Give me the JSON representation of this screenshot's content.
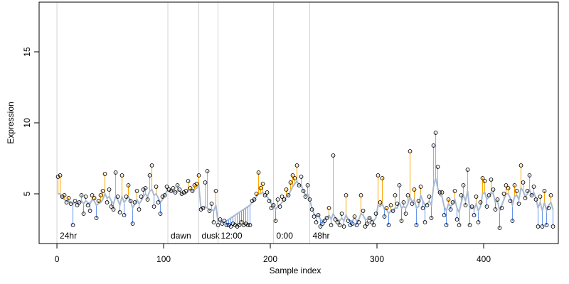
{
  "chart_data": {
    "type": "scatter",
    "xlabel": "Sample index",
    "ylabel": "Expression",
    "xlim": [
      -16.7,
      470
    ],
    "ylim": [
      1.5,
      18.5
    ],
    "xticks": [
      0,
      100,
      200,
      300,
      400
    ],
    "yticks": [
      5,
      10,
      15
    ],
    "colors": {
      "above": "#ffa500",
      "below": "#6495ed",
      "fit": "#a9b9d0",
      "points": "#000000",
      "divider": "#d3d3d3",
      "annotation": "#a9a9a9"
    },
    "annotations": [
      {
        "x": 0,
        "label": "24hr"
      },
      {
        "x": 104,
        "label": "dawn"
      },
      {
        "x": 133,
        "label": "dusk"
      },
      {
        "x": 151,
        "label": "12:00"
      },
      {
        "x": 203,
        "label": "0:00"
      },
      {
        "x": 237,
        "label": "48hr"
      }
    ],
    "x": [
      1,
      3,
      5,
      7,
      9,
      11,
      13,
      15,
      17,
      19,
      21,
      23,
      25,
      27,
      29,
      31,
      33,
      35,
      37,
      39,
      41,
      43,
      45,
      47,
      49,
      51,
      53,
      55,
      57,
      59,
      61,
      63,
      65,
      67,
      69,
      71,
      73,
      75,
      77,
      79,
      81,
      83,
      85,
      87,
      89,
      91,
      93,
      95,
      97,
      99,
      101,
      103,
      105,
      107,
      109,
      111,
      113,
      115,
      117,
      119,
      121,
      123,
      125,
      127,
      129,
      131,
      133,
      135,
      137,
      139,
      141,
      143,
      145,
      147,
      149,
      151,
      153,
      155,
      157,
      159,
      161,
      163,
      165,
      167,
      169,
      171,
      173,
      175,
      177,
      179,
      181,
      183,
      185,
      187,
      189,
      191,
      193,
      195,
      197,
      199,
      201,
      203,
      205,
      207,
      209,
      211,
      213,
      215,
      217,
      219,
      221,
      223,
      225,
      227,
      229,
      231,
      233,
      235,
      237,
      239,
      241,
      243,
      245,
      247,
      249,
      251,
      253,
      255,
      257,
      259,
      261,
      263,
      265,
      267,
      269,
      271,
      273,
      275,
      277,
      279,
      281,
      283,
      285,
      287,
      289,
      291,
      293,
      295,
      297,
      299,
      301,
      303,
      305,
      307,
      309,
      311,
      313,
      315,
      317,
      319,
      321,
      323,
      325,
      327,
      329,
      331,
      333,
      335,
      337,
      339,
      341,
      343,
      345,
      347,
      349,
      351,
      353,
      355,
      357,
      359,
      361,
      363,
      365,
      367,
      369,
      371,
      373,
      375,
      377,
      379,
      381,
      383,
      385,
      387,
      389,
      391,
      393,
      395,
      397,
      399,
      401,
      403,
      405,
      407,
      409,
      411,
      413,
      415,
      417,
      419,
      421,
      423,
      425,
      427,
      429,
      431,
      433,
      435,
      437,
      439,
      441,
      443,
      445,
      447,
      449,
      451,
      453,
      455,
      457,
      459,
      461,
      463,
      465
    ],
    "values": [
      6.2,
      6.3,
      4.8,
      4.9,
      4.4,
      4.7,
      4.3,
      2.8,
      4.5,
      4.2,
      4.4,
      4.9,
      3.6,
      4.8,
      4.2,
      3.8,
      4.9,
      4.7,
      3.3,
      4.5,
      4.9,
      5.2,
      6.4,
      4.4,
      5.3,
      4.1,
      3.9,
      6.5,
      4.8,
      3.7,
      6.3,
      3.5,
      4.8,
      5.6,
      4.5,
      2.9,
      4.4,
      5.2,
      3.9,
      4.8,
      5.3,
      5.4,
      4.6,
      6.3,
      7.0,
      4.1,
      5.5,
      4.4,
      3.6,
      4.8,
      4.9,
      5.5,
      5.3,
      5.2,
      5.4,
      5.1,
      5.6,
      5.3,
      5.0,
      5.1,
      5.2,
      5.9,
      5.4,
      5.2,
      5.6,
      5.7,
      6.3,
      3.9,
      4.0,
      5.8,
      6.6,
      3.8,
      4.3,
      3.0,
      5.2,
      2.8,
      3.2,
      2.9,
      3.1,
      2.8,
      2.8,
      2.7,
      2.9,
      2.8,
      2.7,
      2.8,
      3.0,
      2.8,
      2.9,
      2.8,
      2.8,
      4.5,
      4.6,
      5.0,
      6.5,
      5.4,
      5.7,
      4.9,
      5.1,
      4.5,
      4.0,
      4.2,
      3.1,
      4.6,
      4.1,
      4.8,
      4.6,
      5.3,
      4.9,
      5.8,
      6.3,
      6.1,
      7.0,
      5.6,
      6.2,
      5.2,
      4.8,
      5.6,
      4.6,
      3.9,
      3.4,
      3.0,
      3.5,
      2.7,
      2.9,
      3.1,
      3.3,
      4.0,
      2.8,
      7.7,
      3.2,
      3.0,
      2.8,
      3.6,
      2.7,
      4.9,
      3.1,
      2.8,
      2.9,
      3.4,
      2.8,
      3.0,
      4.9,
      3.8,
      2.7,
      2.9,
      3.3,
      3.0,
      2.8,
      3.6,
      6.3,
      4.4,
      6.1,
      3.4,
      4.0,
      2.8,
      4.2,
      3.8,
      4.9,
      4.3,
      5.6,
      3.1,
      4.4,
      3.6,
      4.9,
      8.0,
      4.3,
      5.3,
      2.8,
      4.5,
      5.5,
      4.0,
      3.0,
      4.2,
      4.8,
      3.3,
      8.4,
      9.3,
      6.9,
      5.1,
      5.1,
      3.5,
      2.8,
      4.6,
      3.9,
      4.4,
      5.2,
      3.2,
      2.8,
      4.9,
      5.6,
      4.2,
      6.7,
      2.8,
      4.1,
      3.5,
      4.8,
      3.0,
      4.4,
      6.1,
      5.9,
      4.1,
      4.9,
      6.0,
      5.3,
      3.9,
      4.6,
      2.6,
      4.0,
      5.0,
      5.6,
      5.4,
      4.5,
      3.1,
      5.6,
      5.2,
      4.3,
      7.0,
      5.8,
      4.7,
      5.2,
      6.3,
      4.9,
      5.5,
      4.6,
      2.7,
      4.8,
      2.7,
      5.2,
      2.8,
      4.0,
      4.9,
      2.7
    ],
    "fitted": [
      5.0,
      5.0,
      4.7,
      4.6,
      4.5,
      4.5,
      4.4,
      4.3,
      4.4,
      4.3,
      4.4,
      4.5,
      4.3,
      4.5,
      4.4,
      4.3,
      4.6,
      4.5,
      4.2,
      4.3,
      4.4,
      4.6,
      5.0,
      4.7,
      4.8,
      4.5,
      4.3,
      4.8,
      4.6,
      4.2,
      4.8,
      4.4,
      4.6,
      4.8,
      4.5,
      4.0,
      4.3,
      4.6,
      4.3,
      4.5,
      4.8,
      5.0,
      4.8,
      5.2,
      5.3,
      4.9,
      5.0,
      4.7,
      4.4,
      4.6,
      4.9,
      5.2,
      5.2,
      5.2,
      5.2,
      5.1,
      5.2,
      5.2,
      5.0,
      5.0,
      5.0,
      5.2,
      5.3,
      5.2,
      5.3,
      5.4,
      5.6,
      4.0,
      4.0,
      4.1,
      4.0,
      3.9,
      3.9,
      3.8,
      4.2,
      3.0,
      3.1,
      3.0,
      3.0,
      3.1,
      3.2,
      3.3,
      3.4,
      3.5,
      3.6,
      3.7,
      3.8,
      3.9,
      4.0,
      4.1,
      4.2,
      4.4,
      4.6,
      4.8,
      5.0,
      5.0,
      5.1,
      4.9,
      4.8,
      4.6,
      4.3,
      4.2,
      3.9,
      4.1,
      4.2,
      4.4,
      4.5,
      4.8,
      4.9,
      5.2,
      5.5,
      5.7,
      5.9,
      5.6,
      5.6,
      5.2,
      4.9,
      5.0,
      4.6,
      4.0,
      3.6,
      3.4,
      3.5,
      3.2,
      3.1,
      3.2,
      3.3,
      3.5,
      3.2,
      3.6,
      3.3,
      3.2,
      3.1,
      3.3,
      3.1,
      3.5,
      3.2,
      3.1,
      3.1,
      3.3,
      3.1,
      3.2,
      3.6,
      3.5,
      3.2,
      3.2,
      3.3,
      3.2,
      3.1,
      3.3,
      4.2,
      4.1,
      4.3,
      3.9,
      3.9,
      3.6,
      3.8,
      3.8,
      4.0,
      4.0,
      4.4,
      4.0,
      4.1,
      4.0,
      4.3,
      4.8,
      4.4,
      4.6,
      4.0,
      4.1,
      4.9,
      4.5,
      4.2,
      4.3,
      4.5,
      4.2,
      5.5,
      6.1,
      5.4,
      4.9,
      4.8,
      4.1,
      3.8,
      4.3,
      4.1,
      4.3,
      4.6,
      4.0,
      3.7,
      4.4,
      4.9,
      4.5,
      5.2,
      3.9,
      4.1,
      3.9,
      4.3,
      3.8,
      4.1,
      5.0,
      5.1,
      4.6,
      4.8,
      5.1,
      5.0,
      4.4,
      4.5,
      3.8,
      4.2,
      4.6,
      5.0,
      5.0,
      4.7,
      4.2,
      4.8,
      4.9,
      4.6,
      5.4,
      5.2,
      4.8,
      5.0,
      5.3,
      4.9,
      5.1,
      4.7,
      4.0,
      4.4,
      3.8,
      4.4,
      3.8,
      4.2,
      4.4,
      3.9
    ]
  }
}
